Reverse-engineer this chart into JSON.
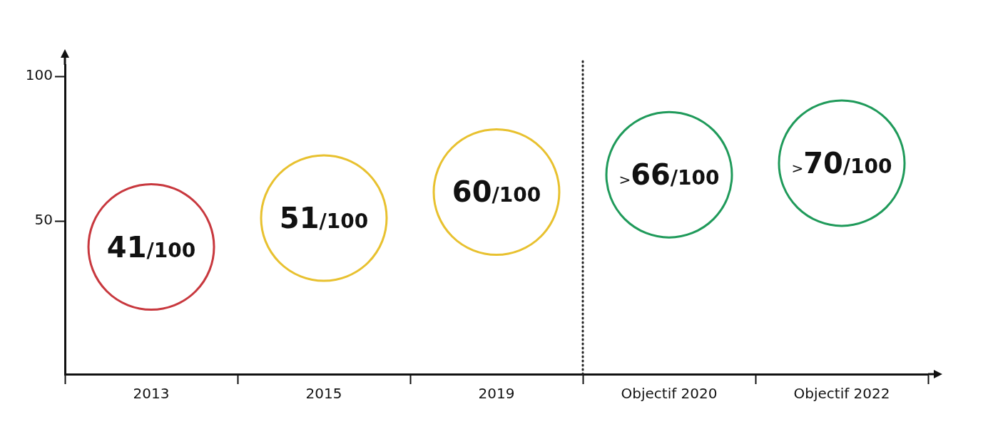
{
  "chart_data": {
    "type": "scatter",
    "categories": [
      "2013",
      "2015",
      "2019",
      "Objectif 2020",
      "Objectif 2022"
    ],
    "values": [
      41,
      51,
      60,
      66,
      70
    ],
    "colors": [
      "#c8383e",
      "#e8c12f",
      "#e8c12f",
      "#1f9a5a",
      "#1f9a5a"
    ],
    "value_labels": [
      "41/100",
      "51/100",
      "60/100",
      ">66/100",
      ">70/100"
    ],
    "ylim": [
      -3,
      104
    ],
    "yticks": [
      50,
      100
    ],
    "marker": "circle",
    "grid": false,
    "legend": false
  }
}
